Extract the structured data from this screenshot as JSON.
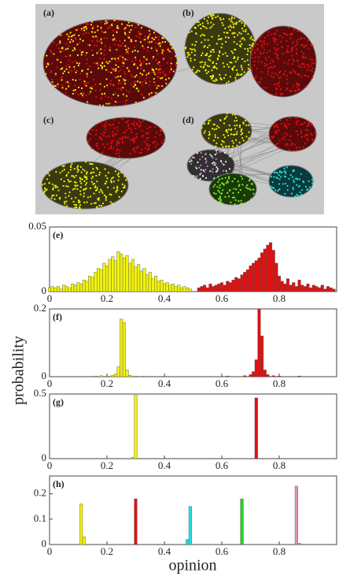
{
  "network_labels": [
    "(a)",
    "(b)",
    "(c)",
    "(d)"
  ],
  "chart_data": [
    {
      "type": "bar",
      "title": "(e)",
      "xlim": [
        0,
        1
      ],
      "xticks": [
        0,
        0.2,
        0.4,
        0.6,
        0.8
      ],
      "ylim": [
        0,
        0.05
      ],
      "yticks": [
        0,
        0.05
      ],
      "series": [
        {
          "color": "#f2f20a",
          "x": [
            0.0,
            0.01,
            0.02,
            0.03,
            0.04,
            0.05,
            0.06,
            0.07,
            0.08,
            0.09,
            0.1,
            0.11,
            0.12,
            0.13,
            0.14,
            0.15,
            0.16,
            0.17,
            0.18,
            0.19,
            0.2,
            0.21,
            0.22,
            0.23,
            0.24,
            0.25,
            0.26,
            0.27,
            0.28,
            0.29,
            0.3,
            0.31,
            0.32,
            0.33,
            0.34,
            0.35,
            0.36,
            0.37,
            0.38,
            0.39,
            0.4,
            0.41,
            0.42,
            0.43,
            0.44,
            0.45,
            0.46,
            0.47,
            0.48,
            0.49
          ],
          "values": [
            0.003,
            0.004,
            0.003,
            0.004,
            0.002,
            0.005,
            0.004,
            0.003,
            0.006,
            0.005,
            0.007,
            0.006,
            0.009,
            0.008,
            0.012,
            0.011,
            0.015,
            0.018,
            0.017,
            0.022,
            0.02,
            0.025,
            0.027,
            0.024,
            0.031,
            0.029,
            0.026,
            0.028,
            0.022,
            0.025,
            0.019,
            0.021,
            0.016,
            0.018,
            0.013,
            0.015,
            0.01,
            0.012,
            0.008,
            0.009,
            0.006,
            0.007,
            0.005,
            0.006,
            0.004,
            0.005,
            0.003,
            0.004,
            0.003,
            0.002
          ]
        },
        {
          "color": "#e01010",
          "x": [
            0.52,
            0.53,
            0.54,
            0.55,
            0.56,
            0.57,
            0.58,
            0.59,
            0.6,
            0.61,
            0.62,
            0.63,
            0.64,
            0.65,
            0.66,
            0.67,
            0.68,
            0.69,
            0.7,
            0.71,
            0.72,
            0.73,
            0.74,
            0.75,
            0.76,
            0.77,
            0.78,
            0.79,
            0.8,
            0.81,
            0.82,
            0.83,
            0.84,
            0.85,
            0.86,
            0.87,
            0.88,
            0.89,
            0.9,
            0.91,
            0.92,
            0.93,
            0.94,
            0.95,
            0.96,
            0.97,
            0.98,
            0.99
          ],
          "values": [
            0.003,
            0.004,
            0.005,
            0.003,
            0.006,
            0.004,
            0.005,
            0.006,
            0.007,
            0.005,
            0.008,
            0.007,
            0.009,
            0.011,
            0.01,
            0.013,
            0.015,
            0.017,
            0.02,
            0.022,
            0.024,
            0.026,
            0.03,
            0.033,
            0.036,
            0.038,
            0.032,
            0.022,
            0.012,
            0.008,
            0.006,
            0.01,
            0.005,
            0.007,
            0.004,
            0.009,
            0.005,
            0.004,
            0.006,
            0.003,
            0.005,
            0.004,
            0.003,
            0.005,
            0.002,
            0.004,
            0.003,
            0.002
          ]
        }
      ]
    },
    {
      "type": "bar",
      "title": "(f)",
      "ylabel": "probability",
      "xlim": [
        0,
        1
      ],
      "xticks": [
        0,
        0.2,
        0.4,
        0.6,
        0.8
      ],
      "ylim": [
        0,
        0.2
      ],
      "yticks": [
        0,
        0.2
      ],
      "series": [
        {
          "color": "#f2f20a",
          "x": [
            0.16,
            0.18,
            0.2,
            0.22,
            0.23,
            0.24,
            0.25,
            0.26,
            0.27,
            0.28,
            0.3,
            0.33
          ],
          "values": [
            0.002,
            0.003,
            0.002,
            0.004,
            0.008,
            0.03,
            0.17,
            0.16,
            0.02,
            0.004,
            0.002,
            0.002
          ]
        },
        {
          "color": "#e01010",
          "x": [
            0.62,
            0.68,
            0.7,
            0.71,
            0.72,
            0.73,
            0.74,
            0.75,
            0.76,
            0.78,
            0.8,
            0.87
          ],
          "values": [
            0.002,
            0.003,
            0.006,
            0.015,
            0.05,
            0.2,
            0.12,
            0.02,
            0.006,
            0.003,
            0.002,
            0.002
          ]
        }
      ]
    },
    {
      "type": "bar",
      "title": "(g)",
      "xlim": [
        0,
        1
      ],
      "xticks": [
        0,
        0.2,
        0.4,
        0.6,
        0.8
      ],
      "ylim": [
        0,
        0.5
      ],
      "yticks": [
        0,
        0.5
      ],
      "series": [
        {
          "color": "#f2f20a",
          "x": [
            0.29,
            0.3
          ],
          "values": [
            0.01,
            0.49
          ]
        },
        {
          "color": "#e01010",
          "x": [
            0.72
          ],
          "values": [
            0.47
          ]
        }
      ]
    },
    {
      "type": "bar",
      "title": "(h)",
      "xlabel": "opinion",
      "xlim": [
        0,
        1
      ],
      "xticks": [
        0,
        0.2,
        0.4,
        0.6,
        0.8
      ],
      "ylim": [
        0,
        0.27
      ],
      "yticks": [
        0,
        0.1,
        0.2
      ],
      "series": [
        {
          "color": "#f2f20a",
          "x": [
            0.11,
            0.12
          ],
          "values": [
            0.16,
            0.03
          ]
        },
        {
          "color": "#e01010",
          "x": [
            0.3
          ],
          "values": [
            0.18
          ]
        },
        {
          "color": "#20e0e0",
          "x": [
            0.48,
            0.49
          ],
          "values": [
            0.02,
            0.15
          ]
        },
        {
          "color": "#20d020",
          "x": [
            0.67
          ],
          "values": [
            0.18
          ]
        },
        {
          "color": "#e090b0",
          "x": [
            0.86,
            0.87
          ],
          "values": [
            0.23,
            0.005
          ]
        }
      ]
    }
  ]
}
